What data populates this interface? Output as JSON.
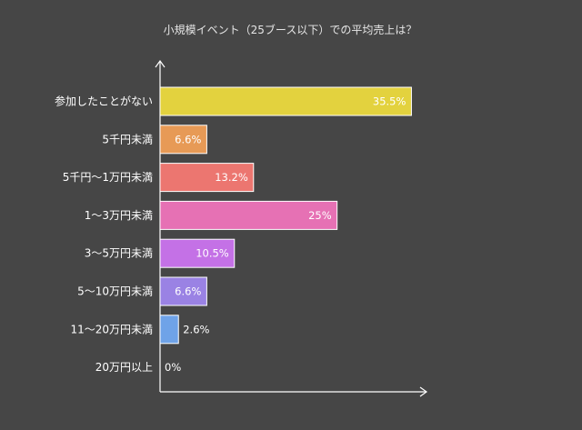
{
  "chart_data": {
    "type": "bar",
    "orientation": "horizontal",
    "title": "小規模イベント（25ブース以下）での平均売上は？",
    "categories": [
      "参加したことがない",
      "5千円未満",
      "5千円〜1万円未満",
      "1〜3万円未満",
      "3〜5万円未満",
      "5〜10万円未満",
      "11〜20万円未満",
      "20万円以上"
    ],
    "values": [
      35.5,
      6.6,
      13.2,
      25,
      10.5,
      6.6,
      2.6,
      0
    ],
    "value_labels": [
      "35.5%",
      "6.6%",
      "13.2%",
      "25%",
      "10.5%",
      "6.6%",
      "2.6%",
      "0%"
    ],
    "colors": [
      "#e3d23e",
      "#e79a56",
      "#ec7670",
      "#e671b4",
      "#c471e6",
      "#9a82e4",
      "#6fa3e8",
      "#6fa3e8"
    ],
    "xlim": [
      0,
      37.5
    ],
    "grid": false,
    "legend": "none"
  }
}
